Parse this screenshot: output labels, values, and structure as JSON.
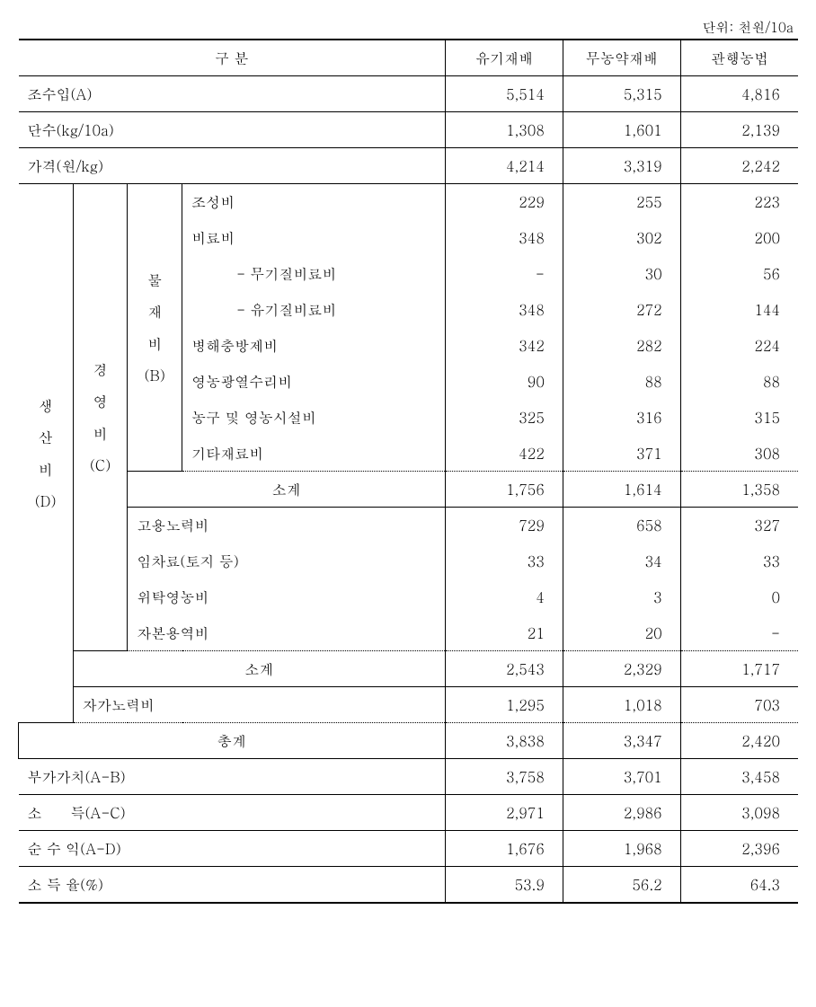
{
  "unit_label": "단위: 천원/10a",
  "header": {
    "category": "구 분",
    "col1": "유기재배",
    "col2": "무농약재배",
    "col3": "관행농법"
  },
  "rows": {
    "gross_income": {
      "label": "조수입(A)",
      "v1": "5,514",
      "v2": "5,315",
      "v3": "4,816"
    },
    "yield": {
      "label": "단수(kg/10a)",
      "v1": "1,308",
      "v2": "1,601",
      "v3": "2,139"
    },
    "price": {
      "label": "가격(원/kg)",
      "v1": "4,214",
      "v2": "3,319",
      "v3": "2,242"
    },
    "seedling": {
      "label": "조성비",
      "v1": "229",
      "v2": "255",
      "v3": "223"
    },
    "fertilizer": {
      "label": "비료비",
      "v1": "348",
      "v2": "302",
      "v3": "200"
    },
    "inorganic": {
      "label": "- 무기질비료비",
      "v1": "-",
      "v2": "30",
      "v3": "56"
    },
    "organic": {
      "label": "- 유기질비료비",
      "v1": "348",
      "v2": "272",
      "v3": "144"
    },
    "pest": {
      "label": "병해충방제비",
      "v1": "342",
      "v2": "282",
      "v3": "224"
    },
    "fuel": {
      "label": "영농광열수리비",
      "v1": "90",
      "v2": "88",
      "v3": "88"
    },
    "equipment": {
      "label": "농구 및 영농시설비",
      "v1": "325",
      "v2": "316",
      "v3": "315"
    },
    "other_materials": {
      "label": "기타재료비",
      "v1": "422",
      "v2": "371",
      "v3": "308"
    },
    "subtotal_b": {
      "label": "소계",
      "v1": "1,756",
      "v2": "1,614",
      "v3": "1,358"
    },
    "hired_labor": {
      "label": "고용노력비",
      "v1": "729",
      "v2": "658",
      "v3": "327"
    },
    "rent": {
      "label": "임차료(토지 등)",
      "v1": "33",
      "v2": "34",
      "v3": "33"
    },
    "contract": {
      "label": "위탁영농비",
      "v1": "4",
      "v2": "3",
      "v3": "0"
    },
    "capital": {
      "label": "자본용역비",
      "v1": "21",
      "v2": "20",
      "v3": "-"
    },
    "subtotal_c": {
      "label": "소계",
      "v1": "2,543",
      "v2": "2,329",
      "v3": "1,717"
    },
    "self_labor": {
      "label": "자가노력비",
      "v1": "1,295",
      "v2": "1,018",
      "v3": "703"
    },
    "total": {
      "label": "총계",
      "v1": "3,838",
      "v2": "3,347",
      "v3": "2,420"
    },
    "value_added": {
      "label": "부가가치(A-B)",
      "v1": "3,758",
      "v2": "3,701",
      "v3": "3,458"
    },
    "income": {
      "label": "소　　득(A-C)",
      "v1": "2,971",
      "v2": "2,986",
      "v3": "3,098"
    },
    "net_profit": {
      "label": "순 수 익(A-D)",
      "v1": "1,676",
      "v2": "1,968",
      "v3": "2,396"
    },
    "income_rate": {
      "label": "소 득 율(%)",
      "v1": "53.9",
      "v2": "56.2",
      "v3": "64.3"
    }
  },
  "vlabels": {
    "d": "생<br>산<br>비<br>(D)",
    "c": "경<br>영<br>비<br>(C)",
    "b": "물<br>재<br>비<br>(B)"
  }
}
